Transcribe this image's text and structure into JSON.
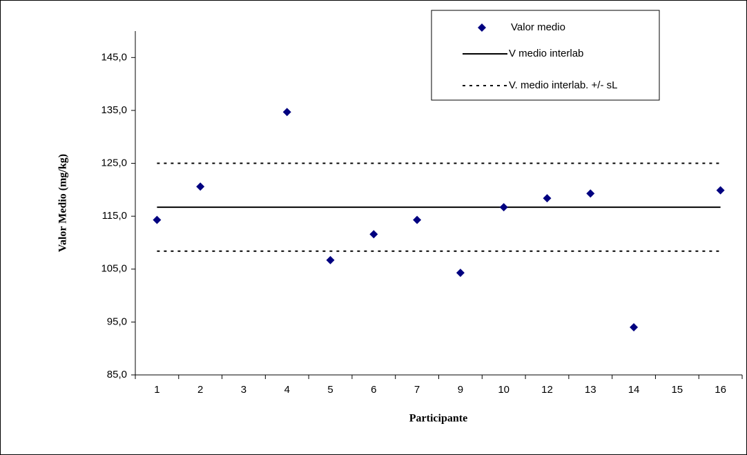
{
  "chart_data": {
    "type": "scatter",
    "x_label": "Participante",
    "y_label": "Valor Medio (mg/kg)",
    "categories": [
      "1",
      "2",
      "3",
      "4",
      "5",
      "6",
      "7",
      "9",
      "10",
      "12",
      "13",
      "14",
      "15",
      "16"
    ],
    "series": [
      {
        "name": "Valor medio",
        "color": "#000080",
        "values": [
          114.3,
          120.6,
          null,
          134.7,
          106.7,
          111.6,
          114.3,
          104.3,
          116.7,
          118.4,
          119.3,
          94.0,
          null,
          119.9
        ]
      }
    ],
    "reference_lines": [
      {
        "name": "V medio interlab",
        "values": [
          116.7
        ],
        "style": "solid"
      },
      {
        "name": "V. medio interlab. +/- sL",
        "values": [
          125.0,
          108.4
        ],
        "style": "dotted"
      }
    ],
    "ylim": [
      85,
      150
    ],
    "yticks": [
      {
        "value": 85,
        "label": "85,0"
      },
      {
        "value": 95,
        "label": "95,0"
      },
      {
        "value": 105,
        "label": "105,0"
      },
      {
        "value": 115,
        "label": "115,0"
      },
      {
        "value": 125,
        "label": "125,0"
      },
      {
        "value": 135,
        "label": "135,0"
      },
      {
        "value": 145,
        "label": "145,0"
      }
    ],
    "legend": "top-right"
  }
}
